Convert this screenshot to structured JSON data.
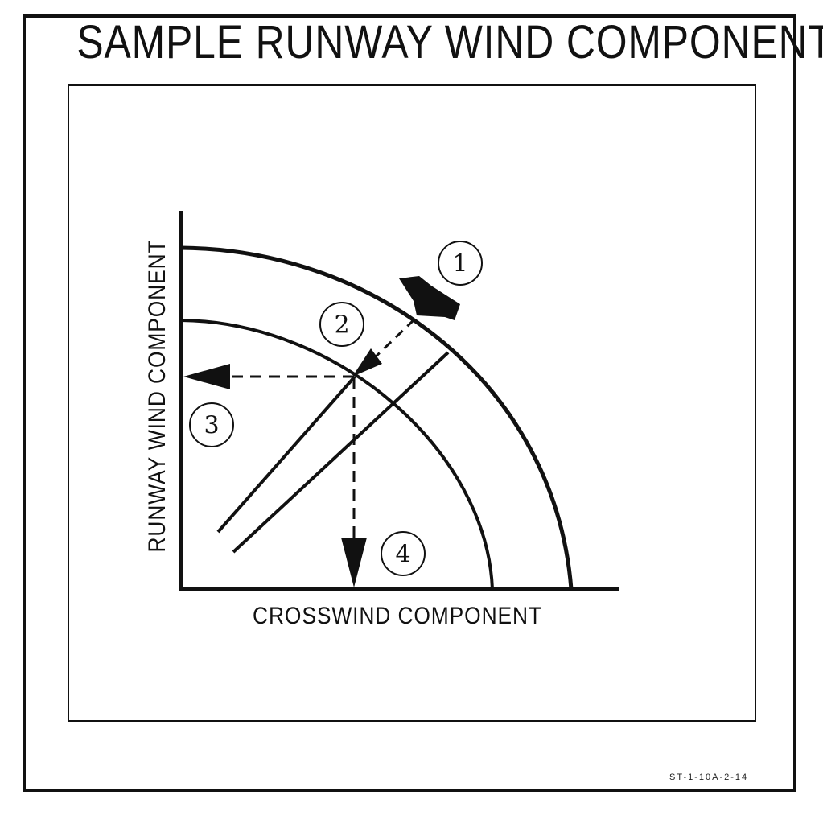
{
  "title": "SAMPLE RUNWAY WIND COMPONENTS",
  "axes": {
    "y_label": "RUNWAY WIND COMPONENT",
    "x_label": "CROSSWIND COMPONENT"
  },
  "callouts": [
    {
      "number": "1",
      "target": "wind arrow"
    },
    {
      "number": "2",
      "target": "intersection of wind line and wind-velocity arc"
    },
    {
      "number": "3",
      "target": "runway wind component read-off"
    },
    {
      "number": "4",
      "target": "crosswind component read-off"
    }
  ],
  "figure_id": "ST-1-10A-2-14",
  "colors": {
    "ink": "#111111",
    "background": "#ffffff"
  }
}
